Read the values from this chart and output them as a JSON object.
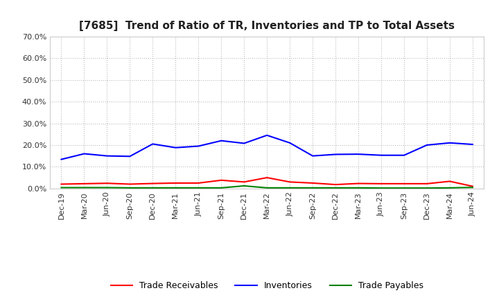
{
  "title": "[7685]  Trend of Ratio of TR, Inventories and TP to Total Assets",
  "x_labels": [
    "Dec-19",
    "Mar-20",
    "Jun-20",
    "Sep-20",
    "Dec-20",
    "Mar-21",
    "Jun-21",
    "Sep-21",
    "Dec-21",
    "Mar-22",
    "Jun-22",
    "Sep-22",
    "Dec-22",
    "Mar-23",
    "Jun-23",
    "Sep-23",
    "Dec-23",
    "Mar-24",
    "Jun-24"
  ],
  "trade_receivables": [
    0.02,
    0.022,
    0.024,
    0.02,
    0.023,
    0.025,
    0.025,
    0.038,
    0.03,
    0.05,
    0.03,
    0.025,
    0.018,
    0.023,
    0.022,
    0.022,
    0.022,
    0.033,
    0.01
  ],
  "inventories": [
    0.134,
    0.16,
    0.15,
    0.148,
    0.205,
    0.188,
    0.195,
    0.22,
    0.208,
    0.245,
    0.21,
    0.15,
    0.157,
    0.158,
    0.153,
    0.153,
    0.2,
    0.21,
    0.203
  ],
  "trade_payables": [
    0.004,
    0.004,
    0.004,
    0.003,
    0.003,
    0.003,
    0.003,
    0.003,
    0.012,
    0.003,
    0.003,
    0.003,
    0.003,
    0.003,
    0.002,
    0.002,
    0.002,
    0.003,
    0.005
  ],
  "ylim": [
    0.0,
    0.7
  ],
  "yticks": [
    0.0,
    0.1,
    0.2,
    0.3,
    0.4,
    0.5,
    0.6,
    0.7
  ],
  "line_color_tr": "#ff0000",
  "line_color_inv": "#0000ff",
  "line_color_tp": "#008000",
  "legend_labels": [
    "Trade Receivables",
    "Inventories",
    "Trade Payables"
  ],
  "background_color": "#ffffff",
  "grid_color": "#bbbbbb"
}
